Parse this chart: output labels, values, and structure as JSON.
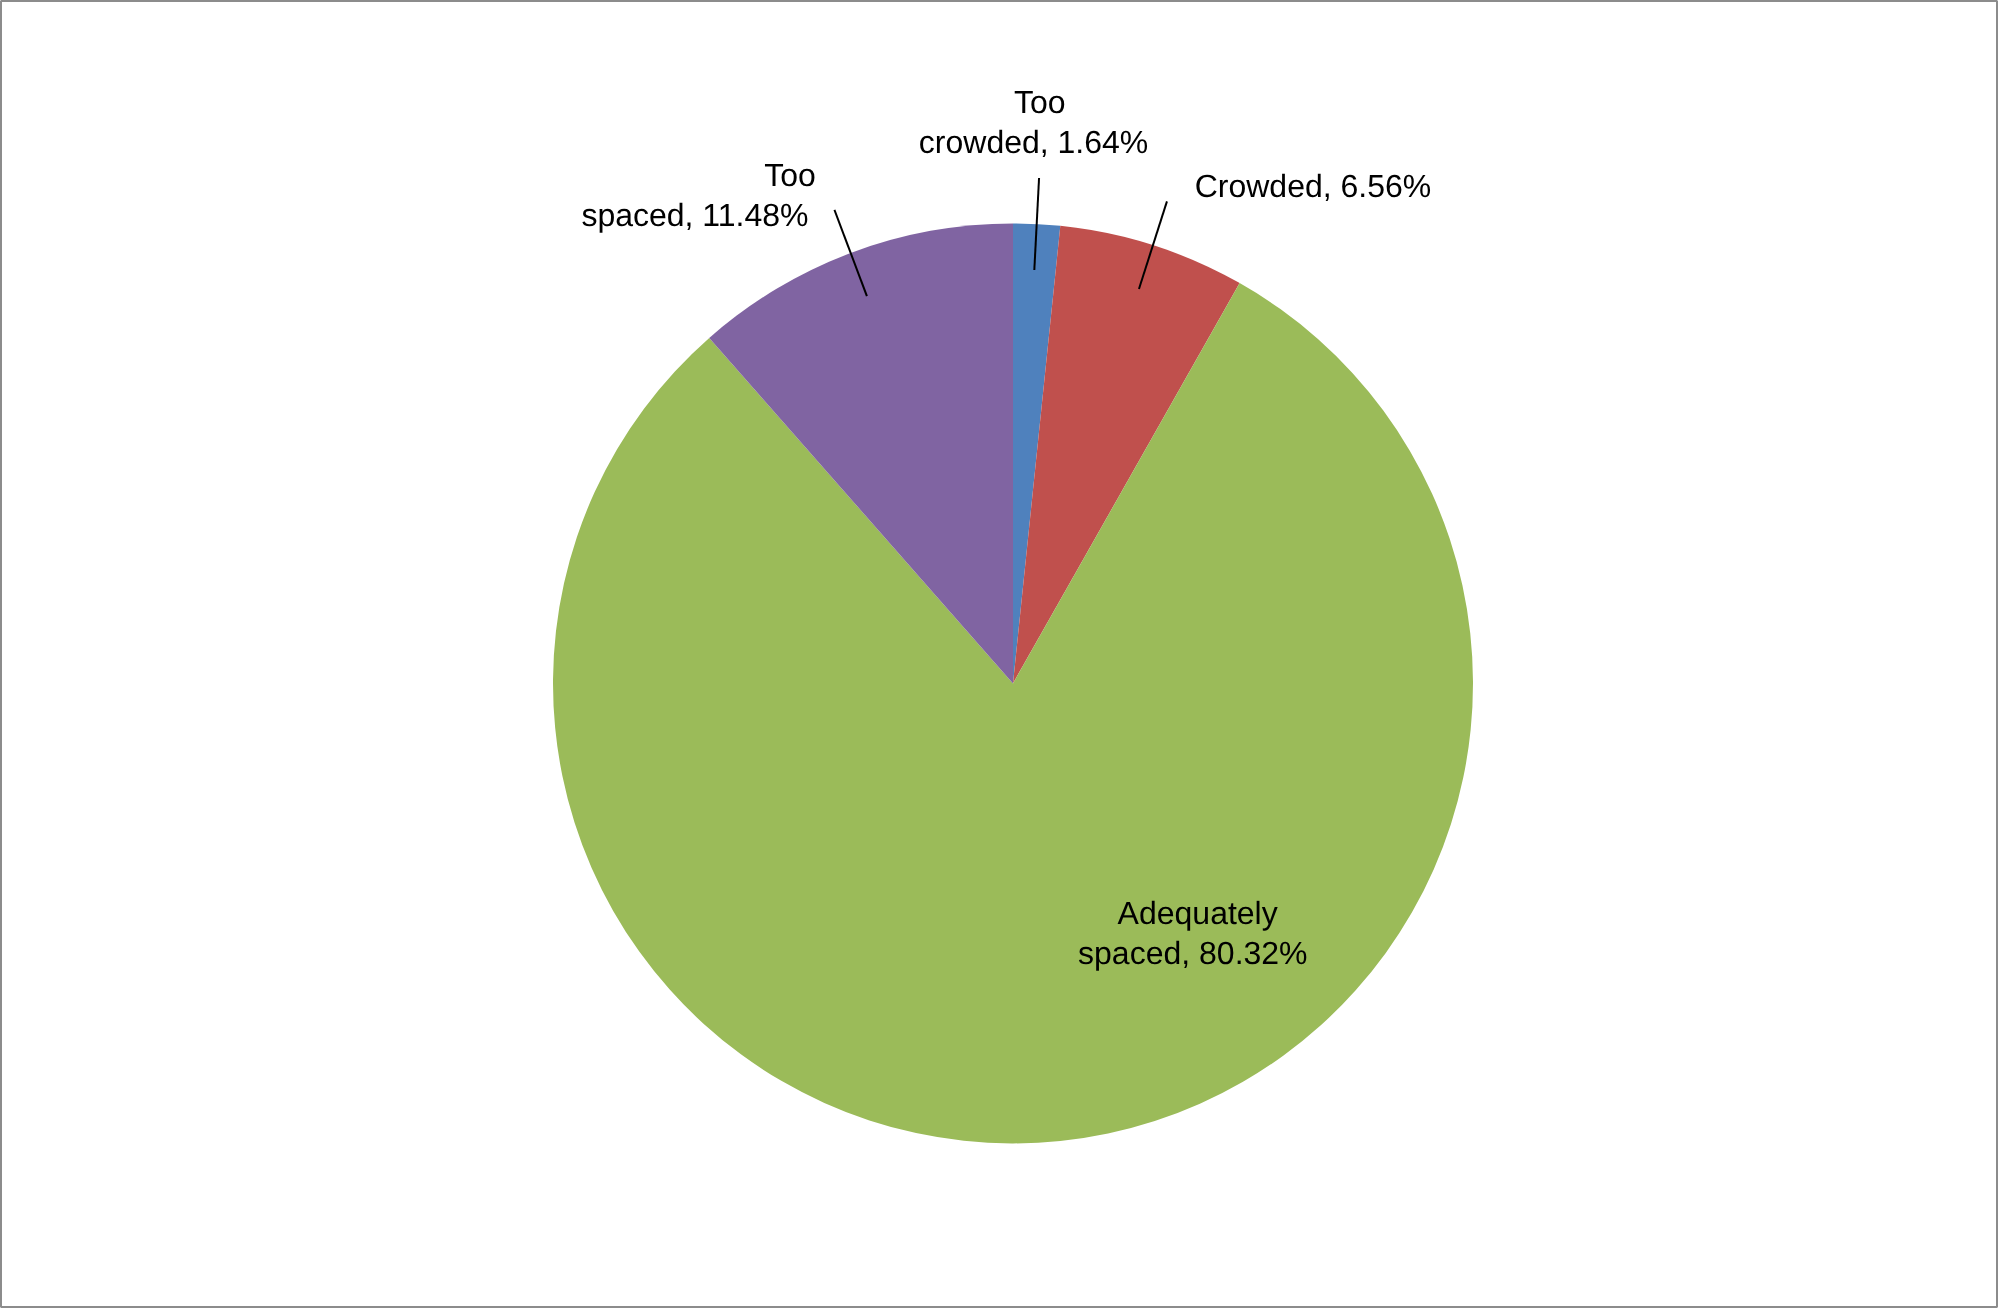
{
  "chart_data": {
    "type": "pie",
    "categories": [
      "Too crowded",
      "Crowded",
      "Adequately spaced",
      "Too spaced"
    ],
    "values": [
      1.64,
      6.56,
      80.32,
      11.48
    ],
    "colors": [
      "#4f81bd",
      "#c0504d",
      "#9bbb59",
      "#8064a2"
    ],
    "value_labels": [
      ", 1.64%",
      ", 6.56%",
      ", 80.32%",
      ", 11.48%"
    ]
  }
}
